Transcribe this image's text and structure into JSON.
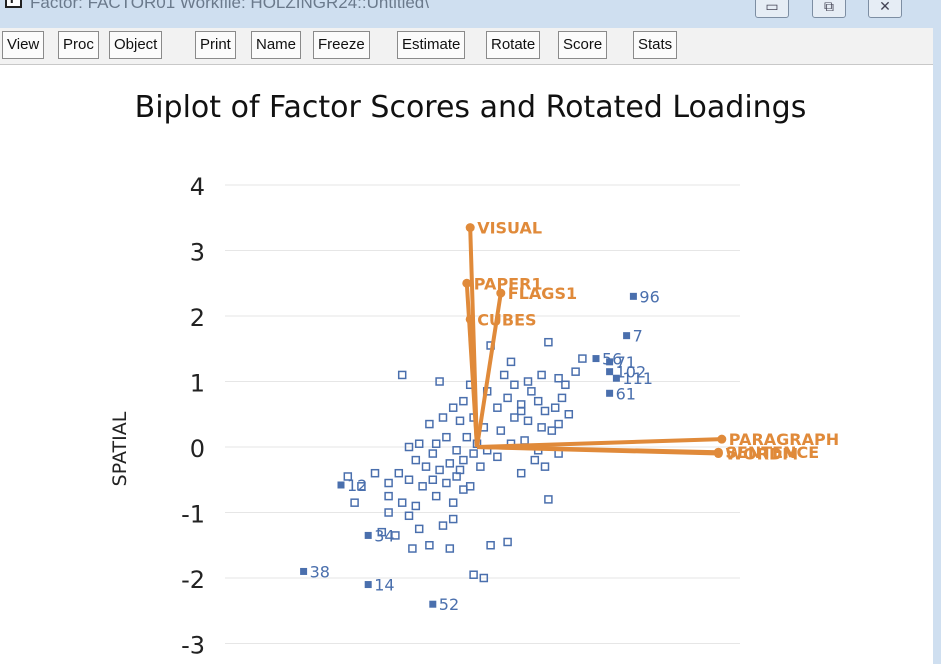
{
  "window": {
    "icon_letter": "F",
    "title": "Factor: FACTOR01   Workfile: HOLZINGR24::Untitled\\",
    "minimize_glyph": "▭",
    "restore_glyph": "⧉",
    "close_glyph": "✕"
  },
  "toolbar": {
    "buttons": [
      "View",
      "Proc",
      "Object",
      "Print",
      "Name",
      "Freeze",
      "Estimate",
      "Rotate",
      "Score",
      "Stats"
    ]
  },
  "colors": {
    "points": "#4a6fad",
    "loadings": "#e08a3a",
    "grid": "#e6e6e6"
  },
  "chart_data": {
    "type": "scatter",
    "title": "Biplot of Factor Scores and Rotated Loadings",
    "ylabel": "SPATIAL",
    "xlabel": "",
    "ylim": [
      -3.3,
      4
    ],
    "xlim": [
      -3.5,
      4
    ],
    "yticks": [
      "4",
      "3",
      "2",
      "1",
      "0",
      "-1",
      "-2",
      "-3"
    ],
    "grid": true,
    "loadings": [
      {
        "label": "VISUAL",
        "x": -0.1,
        "y": 3.35
      },
      {
        "label": "PAPER1",
        "x": -0.15,
        "y": 2.5
      },
      {
        "label": "FLAGS1",
        "x": 0.35,
        "y": 2.35
      },
      {
        "label": "CUBES",
        "x": -0.1,
        "y": 1.95
      },
      {
        "label": "PARAGRAPH",
        "x": 3.6,
        "y": 0.12
      },
      {
        "label": "SENTENCE",
        "x": 3.55,
        "y": -0.08
      },
      {
        "label": "WORDM",
        "x": 3.55,
        "y": -0.1
      }
    ],
    "labeled_points": [
      {
        "label": "96",
        "x": 2.3,
        "y": 2.3
      },
      {
        "label": "7",
        "x": 2.2,
        "y": 1.7
      },
      {
        "label": "56",
        "x": 1.75,
        "y": 1.35
      },
      {
        "label": "71",
        "x": 1.95,
        "y": 1.3
      },
      {
        "label": "102",
        "x": 1.95,
        "y": 1.15
      },
      {
        "label": "111",
        "x": 2.05,
        "y": 1.05
      },
      {
        "label": "61",
        "x": 1.95,
        "y": 0.82
      },
      {
        "label": "12",
        "x": -2.0,
        "y": -0.58
      },
      {
        "label": "34",
        "x": -1.6,
        "y": -1.35
      },
      {
        "label": "38",
        "x": -2.55,
        "y": -1.9
      },
      {
        "label": "14",
        "x": -1.6,
        "y": -2.1
      },
      {
        "label": "52",
        "x": -0.65,
        "y": -2.4
      }
    ],
    "points": [
      [
        -1.1,
        1.1
      ],
      [
        -0.55,
        1.0
      ],
      [
        -0.1,
        0.95
      ],
      [
        0.4,
        1.1
      ],
      [
        0.55,
        0.95
      ],
      [
        0.75,
        1.0
      ],
      [
        1.05,
        1.6
      ],
      [
        0.2,
        1.55
      ],
      [
        0.5,
        1.3
      ],
      [
        0.95,
        1.1
      ],
      [
        1.2,
        1.05
      ],
      [
        1.3,
        0.95
      ],
      [
        1.45,
        1.15
      ],
      [
        0.65,
        0.65
      ],
      [
        0.9,
        0.7
      ],
      [
        1.0,
        0.55
      ],
      [
        1.15,
        0.6
      ],
      [
        1.25,
        0.75
      ],
      [
        0.55,
        0.45
      ],
      [
        0.75,
        0.4
      ],
      [
        0.95,
        0.3
      ],
      [
        1.1,
        0.25
      ],
      [
        1.2,
        0.35
      ],
      [
        0.35,
        0.25
      ],
      [
        0.15,
        0.85
      ],
      [
        0.3,
        0.6
      ],
      [
        -0.2,
        0.7
      ],
      [
        -0.35,
        0.6
      ],
      [
        -0.5,
        0.45
      ],
      [
        -0.7,
        0.35
      ],
      [
        -0.25,
        0.4
      ],
      [
        0.1,
        0.3
      ],
      [
        -0.15,
        0.15
      ],
      [
        0.0,
        0.05
      ],
      [
        -0.45,
        0.15
      ],
      [
        -0.6,
        0.05
      ],
      [
        -0.85,
        0.05
      ],
      [
        -1.0,
        0.0
      ],
      [
        -0.3,
        -0.05
      ],
      [
        -0.05,
        -0.1
      ],
      [
        0.15,
        -0.05
      ],
      [
        0.3,
        -0.15
      ],
      [
        0.5,
        0.05
      ],
      [
        0.7,
        0.1
      ],
      [
        0.9,
        -0.05
      ],
      [
        1.2,
        -0.1
      ],
      [
        1.0,
        -0.3
      ],
      [
        0.65,
        -0.4
      ],
      [
        -0.2,
        -0.2
      ],
      [
        -0.4,
        -0.25
      ],
      [
        -0.55,
        -0.35
      ],
      [
        -0.75,
        -0.3
      ],
      [
        -0.9,
        -0.2
      ],
      [
        -0.3,
        -0.45
      ],
      [
        -0.1,
        -0.6
      ],
      [
        0.05,
        -0.3
      ],
      [
        -0.45,
        -0.55
      ],
      [
        -0.65,
        -0.5
      ],
      [
        -0.8,
        -0.6
      ],
      [
        -1.0,
        -0.5
      ],
      [
        -1.15,
        -0.4
      ],
      [
        -1.3,
        -0.55
      ],
      [
        -1.5,
        -0.4
      ],
      [
        -1.7,
        -0.6
      ],
      [
        -1.9,
        -0.45
      ],
      [
        -1.8,
        -0.85
      ],
      [
        -1.3,
        -0.75
      ],
      [
        -1.1,
        -0.85
      ],
      [
        -0.9,
        -0.9
      ],
      [
        -0.6,
        -0.75
      ],
      [
        -0.35,
        -0.85
      ],
      [
        -0.2,
        -0.65
      ],
      [
        -0.5,
        -1.2
      ],
      [
        -0.85,
        -1.25
      ],
      [
        -1.0,
        -1.05
      ],
      [
        -1.3,
        -1.0
      ],
      [
        -0.35,
        -1.1
      ],
      [
        -1.4,
        -1.3
      ],
      [
        -1.2,
        -1.35
      ],
      [
        -0.95,
        -1.55
      ],
      [
        -0.7,
        -1.5
      ],
      [
        -0.4,
        -1.55
      ],
      [
        0.2,
        -1.5
      ],
      [
        0.45,
        -1.45
      ],
      [
        -0.05,
        -1.95
      ],
      [
        0.1,
        -2.0
      ],
      [
        1.05,
        -0.8
      ],
      [
        0.85,
        -0.2
      ],
      [
        -0.05,
        0.45
      ],
      [
        0.45,
        0.75
      ],
      [
        0.65,
        0.55
      ],
      [
        0.8,
        0.85
      ],
      [
        1.35,
        0.5
      ],
      [
        1.55,
        1.35
      ],
      [
        -0.65,
        -0.1
      ],
      [
        -0.25,
        -0.35
      ]
    ]
  }
}
